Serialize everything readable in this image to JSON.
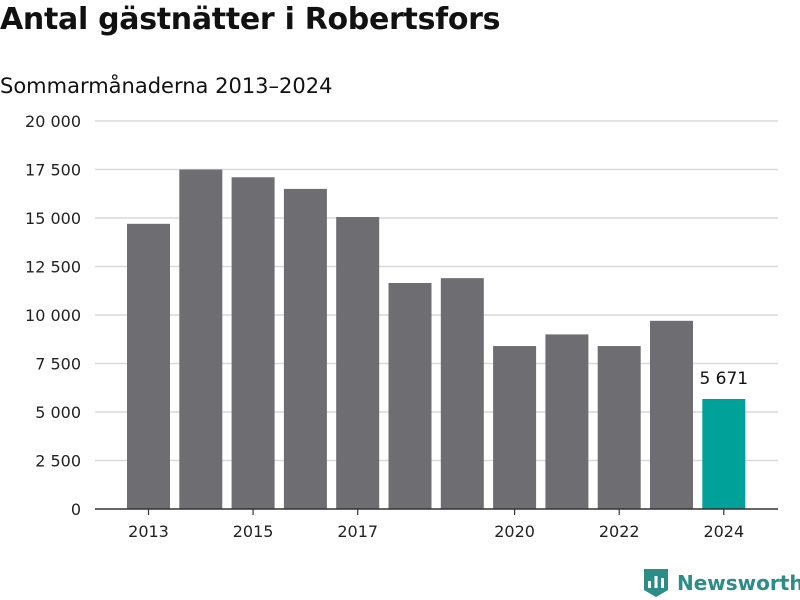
{
  "header": {
    "title": "Antal gästnätter i Robertsfors",
    "subtitle": "Sommarmånaderna 2013–2024"
  },
  "branding": {
    "name": "Newsworthy",
    "logo_icon": "newsworthy-chart-icon"
  },
  "colors": {
    "bar": "#6e6d72",
    "highlight": "#00a198",
    "grid": "#d9d9d9",
    "brand": "#2b8c88"
  },
  "chart_data": {
    "type": "bar",
    "title": "Antal gästnätter i Robertsfors",
    "subtitle": "Sommarmånaderna 2013–2024",
    "xlabel": "",
    "ylabel": "",
    "categories": [
      "2013",
      "2014",
      "2015",
      "2016",
      "2017",
      "2018",
      "2019",
      "2020",
      "2021",
      "2022",
      "2023",
      "2024"
    ],
    "values": [
      14700,
      17500,
      17100,
      16500,
      15050,
      11650,
      11900,
      8400,
      9000,
      8400,
      9700,
      5671
    ],
    "x_tick_labels": [
      "2013",
      "",
      "2015",
      "",
      "2017",
      "",
      "",
      "2020",
      "",
      "2022",
      "",
      "2024"
    ],
    "ylim": [
      0,
      20000
    ],
    "y_ticks": [
      0,
      2500,
      5000,
      7500,
      10000,
      12500,
      15000,
      17500,
      20000
    ],
    "y_tick_labels": [
      "0",
      "2 500",
      "5 000",
      "7 500",
      "10 000",
      "12 500",
      "15 000",
      "17 500",
      "20 000"
    ],
    "grid": true,
    "highlight_index": 11,
    "annotations": [
      {
        "category": "2024",
        "text": "5 671"
      }
    ]
  }
}
